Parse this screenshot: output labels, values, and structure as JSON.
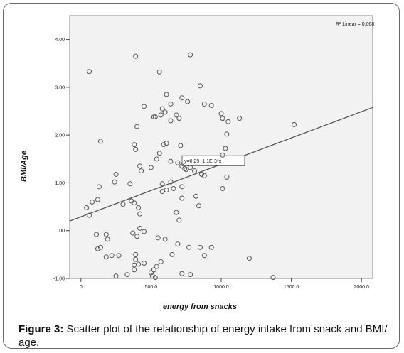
{
  "chart_data": {
    "type": "scatter",
    "xlabel": "energy from snacks",
    "ylabel": "BMI/Age",
    "xlim": [
      -80,
      2080
    ],
    "ylim": [
      -1.0,
      4.5
    ],
    "x_ticks": [
      "0",
      "500.0",
      "1000.0",
      "1500.0",
      "2000.0"
    ],
    "x_tick_values": [
      0,
      500,
      1000,
      1500,
      2000
    ],
    "y_ticks": [
      "4.00",
      "3.00",
      "2.00",
      "1.00",
      ".00",
      "-1.00"
    ],
    "y_tick_values": [
      4,
      3,
      2,
      1,
      0,
      -1
    ],
    "r2_label": "R² Linear = 0.068",
    "fit_equation_label": "y=0.29+1.1E-3*x",
    "fit_line": {
      "intercept": 0.29,
      "slope": 0.0011
    },
    "grid": false,
    "points": [
      [
        60,
        3.33
      ],
      [
        390,
        3.65
      ],
      [
        780,
        3.68
      ],
      [
        560,
        3.32
      ],
      [
        850,
        3.03
      ],
      [
        610,
        2.85
      ],
      [
        720,
        2.78
      ],
      [
        760,
        2.7
      ],
      [
        640,
        2.65
      ],
      [
        450,
        2.6
      ],
      [
        880,
        2.65
      ],
      [
        930,
        2.62
      ],
      [
        580,
        2.55
      ],
      [
        600,
        2.48
      ],
      [
        520,
        2.38
      ],
      [
        530,
        2.38
      ],
      [
        570,
        2.42
      ],
      [
        680,
        2.42
      ],
      [
        700,
        2.35
      ],
      [
        640,
        2.3
      ],
      [
        1000,
        2.45
      ],
      [
        1010,
        2.35
      ],
      [
        1050,
        2.28
      ],
      [
        1130,
        2.35
      ],
      [
        1520,
        2.22
      ],
      [
        400,
        2.18
      ],
      [
        1040,
        2.02
      ],
      [
        140,
        1.87
      ],
      [
        380,
        1.8
      ],
      [
        610,
        1.83
      ],
      [
        590,
        1.8
      ],
      [
        710,
        1.78
      ],
      [
        1030,
        1.72
      ],
      [
        390,
        1.7
      ],
      [
        560,
        1.62
      ],
      [
        1010,
        1.58
      ],
      [
        540,
        1.5
      ],
      [
        640,
        1.45
      ],
      [
        690,
        1.42
      ],
      [
        420,
        1.35
      ],
      [
        500,
        1.32
      ],
      [
        720,
        1.35
      ],
      [
        740,
        1.3
      ],
      [
        780,
        1.32
      ],
      [
        810,
        1.25
      ],
      [
        860,
        1.18
      ],
      [
        880,
        1.15
      ],
      [
        430,
        1.25
      ],
      [
        250,
        1.18
      ],
      [
        750,
        1.28
      ],
      [
        240,
        1.02
      ],
      [
        130,
        0.92
      ],
      [
        350,
        0.98
      ],
      [
        580,
        0.98
      ],
      [
        640,
        1.02
      ],
      [
        660,
        0.88
      ],
      [
        720,
        0.92
      ],
      [
        610,
        0.85
      ],
      [
        580,
        0.82
      ],
      [
        1010,
        0.88
      ],
      [
        1040,
        1.12
      ],
      [
        120,
        0.65
      ],
      [
        80,
        0.6
      ],
      [
        40,
        0.48
      ],
      [
        300,
        0.55
      ],
      [
        360,
        0.62
      ],
      [
        380,
        0.58
      ],
      [
        410,
        0.48
      ],
      [
        720,
        0.68
      ],
      [
        820,
        0.72
      ],
      [
        840,
        0.52
      ],
      [
        60,
        0.32
      ],
      [
        420,
        0.35
      ],
      [
        680,
        0.38
      ],
      [
        700,
        0.22
      ],
      [
        420,
        0.05
      ],
      [
        450,
        -0.02
      ],
      [
        110,
        -0.08
      ],
      [
        180,
        -0.08
      ],
      [
        370,
        -0.05
      ],
      [
        400,
        -0.12
      ],
      [
        550,
        -0.15
      ],
      [
        600,
        -0.18
      ],
      [
        190,
        -0.18
      ],
      [
        140,
        -0.35
      ],
      [
        120,
        -0.38
      ],
      [
        690,
        -0.28
      ],
      [
        770,
        -0.35
      ],
      [
        850,
        -0.35
      ],
      [
        930,
        -0.35
      ],
      [
        880,
        -0.52
      ],
      [
        1200,
        -0.58
      ],
      [
        180,
        -0.55
      ],
      [
        220,
        -0.52
      ],
      [
        270,
        -0.52
      ],
      [
        390,
        -0.5
      ],
      [
        390,
        -0.6
      ],
      [
        410,
        -0.7
      ],
      [
        450,
        -0.68
      ],
      [
        380,
        -0.72
      ],
      [
        650,
        -0.5
      ],
      [
        570,
        -0.65
      ],
      [
        540,
        -0.75
      ],
      [
        520,
        -0.82
      ],
      [
        250,
        -0.95
      ],
      [
        330,
        -0.92
      ],
      [
        500,
        -0.88
      ],
      [
        510,
        -0.95
      ],
      [
        530,
        -0.98
      ],
      [
        720,
        -0.9
      ],
      [
        780,
        -0.92
      ],
      [
        1370,
        -0.98
      ],
      [
        380,
        -0.82
      ]
    ]
  },
  "caption": {
    "label": "Figure 3:",
    "text": " Scatter plot of the relationship of energy intake from snack and BMI/ age."
  }
}
